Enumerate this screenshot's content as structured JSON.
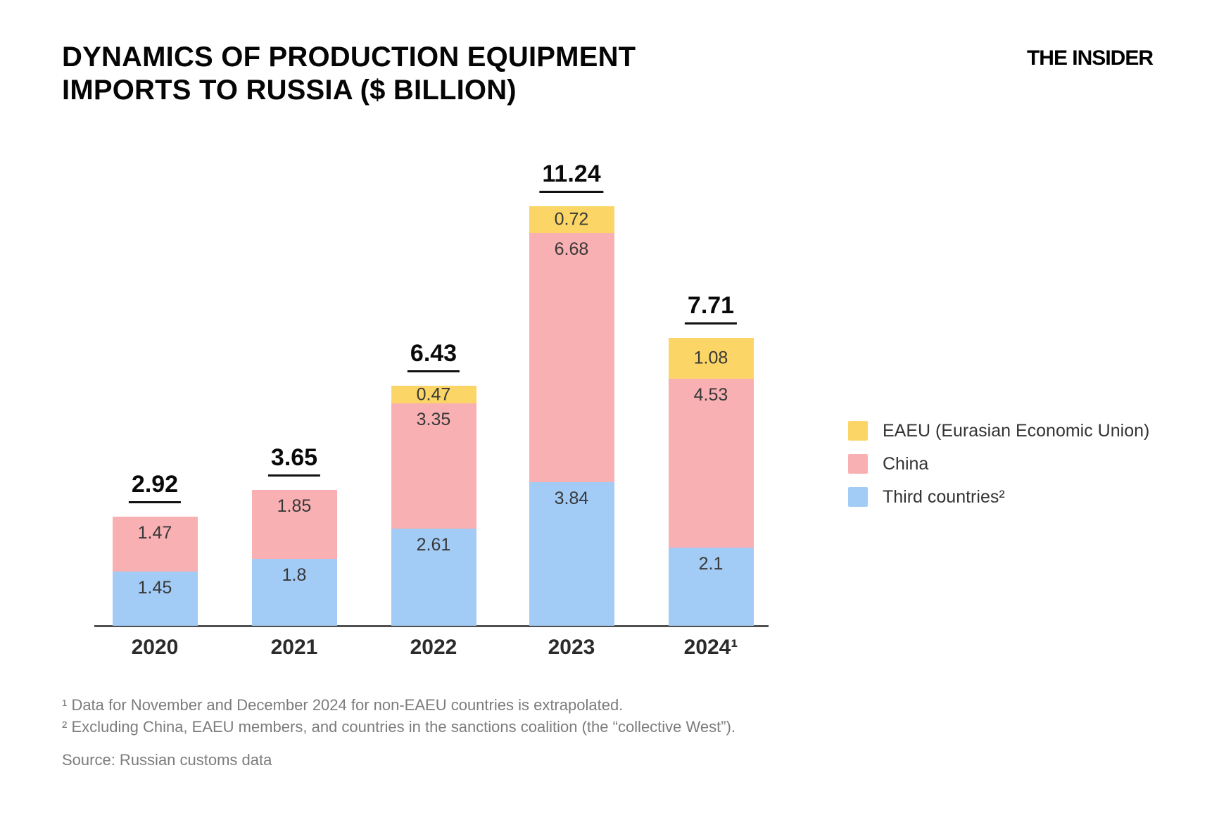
{
  "header": {
    "title_line1": "DYNAMICS OF PRODUCTION EQUIPMENT",
    "title_line2": "IMPORTS TO RUSSIA ($ BILLION)",
    "logo": "THE INSIDER"
  },
  "chart_data": {
    "type": "bar",
    "stacked": true,
    "title": "DYNAMICS OF PRODUCTION EQUIPMENT IMPORTS TO RUSSIA ($ BILLION)",
    "unit": "$ billion",
    "categories": [
      "2020",
      "2021",
      "2022",
      "2023",
      "2024¹"
    ],
    "series": [
      {
        "name": "Third countries²",
        "color": "#A2CBF5",
        "values": [
          1.45,
          1.8,
          2.61,
          3.84,
          2.1
        ]
      },
      {
        "name": "China",
        "color": "#F9B0B3",
        "values": [
          1.47,
          1.85,
          3.35,
          6.68,
          4.53
        ]
      },
      {
        "name": "EAEU (Eurasian Economic Union)",
        "color": "#FBD666",
        "values": [
          0,
          0,
          0.47,
          0.72,
          1.08
        ]
      }
    ],
    "totals": [
      2.92,
      3.65,
      6.43,
      11.24,
      7.71
    ],
    "ylim": [
      0,
      12
    ],
    "grid": false,
    "legend_position": "right",
    "totals_underlined": true
  },
  "legend": {
    "items": [
      {
        "label": "EAEU (Eurasian Economic Union)",
        "color": "#FBD666"
      },
      {
        "label": "China",
        "color": "#F9B0B3"
      },
      {
        "label": "Third countries²",
        "color": "#A2CBF5"
      }
    ]
  },
  "footnotes": {
    "note1": "¹ Data for November and December 2024 for non-EAEU countries is extrapolated.",
    "note2": "² Excluding China, EAEU members, and countries in the sanctions coalition (the “collective West”).",
    "source": "Source: Russian customs data"
  }
}
